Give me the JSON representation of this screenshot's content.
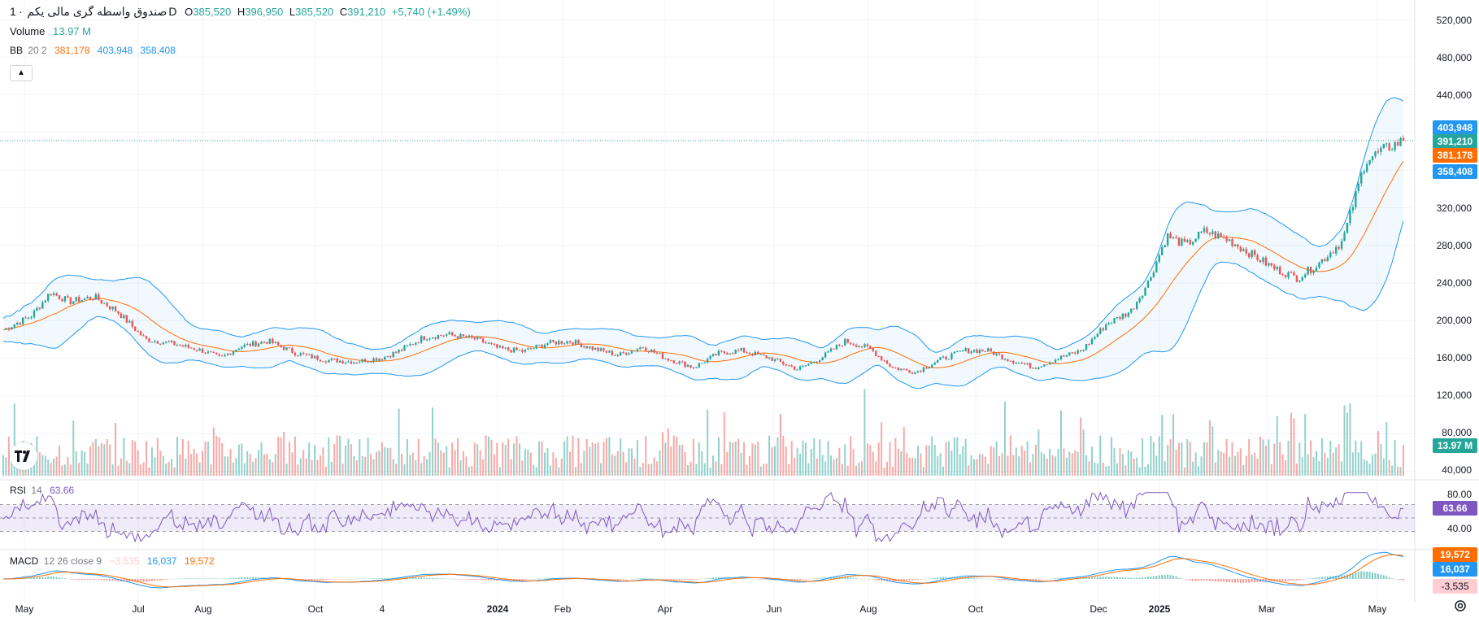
{
  "header": {
    "symbol": "صندوق واسطه گری مالی یکم",
    "sep": "·",
    "interval": "1D",
    "o_label": "O",
    "o_value": "385,520",
    "h_label": "H",
    "h_value": "396,950",
    "l_label": "L",
    "l_value": "385,520",
    "c_label": "C",
    "c_value": "391,210",
    "change": "+5,740 (+1.49%)"
  },
  "volume_legend": {
    "label": "Volume",
    "value": "13.97 M"
  },
  "bb_legend": {
    "label": "BB",
    "params": "20 2",
    "basis": "381,178",
    "upper": "403,948",
    "lower": "358,408"
  },
  "rsi_legend": {
    "label": "RSI",
    "params": "14",
    "value": "63.66"
  },
  "macd_legend": {
    "label": "MACD",
    "params": "12 26 close 9",
    "hist": "−3,535",
    "macd": "16,037",
    "signal": "19,572"
  },
  "price_axis": {
    "ticks": [
      "520,000",
      "480,000",
      "440,000",
      "320,000",
      "280,000",
      "240,000",
      "200,000",
      "160,000",
      "120,000",
      "80,000",
      "40,000"
    ],
    "tags": {
      "upper": "403,948",
      "close": "391,210",
      "basis": "381,178",
      "lower": "358,408",
      "volume": "13.97 M"
    }
  },
  "rsi_axis": {
    "ticks": [
      "80.00",
      "40.00"
    ],
    "tag": "63.66"
  },
  "macd_axis": {
    "tags": {
      "signal": "19,572",
      "macd": "16,037",
      "hist": "-3,535"
    }
  },
  "time_axis": [
    "May",
    "Jul",
    "Aug",
    "Oct",
    "4",
    "2024",
    "Feb",
    "Apr",
    "Jun",
    "Aug",
    "Oct",
    "Dec",
    "2025",
    "Mar",
    "May"
  ],
  "colors": {
    "up": "#26a69a",
    "down": "#ef5350",
    "bb_band": "#2196f3",
    "bb_basis": "#ff6d00",
    "rsi": "#7e57c2",
    "macd": "#2196f3",
    "signal": "#ff6d00",
    "close_line": "#26a69a"
  },
  "chart_data": {
    "type": "candlestick",
    "x_range": [
      "2023-05",
      "2025-05"
    ],
    "price_range": [
      120000,
      520000
    ],
    "close_path": [
      [
        0,
        190000
      ],
      [
        15,
        205000
      ],
      [
        25,
        230000
      ],
      [
        35,
        220000
      ],
      [
        48,
        225000
      ],
      [
        60,
        210000
      ],
      [
        75,
        180000
      ],
      [
        90,
        175000
      ],
      [
        105,
        168000
      ],
      [
        115,
        160000
      ],
      [
        125,
        172000
      ],
      [
        140,
        178000
      ],
      [
        155,
        165000
      ],
      [
        170,
        158000
      ],
      [
        185,
        156000
      ],
      [
        200,
        160000
      ],
      [
        210,
        168000
      ],
      [
        222,
        182000
      ],
      [
        235,
        185000
      ],
      [
        250,
        180000
      ],
      [
        262,
        170000
      ],
      [
        275,
        167000
      ],
      [
        288,
        176000
      ],
      [
        300,
        178000
      ],
      [
        312,
        170000
      ],
      [
        325,
        163000
      ],
      [
        338,
        172000
      ],
      [
        350,
        160000
      ],
      [
        365,
        150000
      ],
      [
        378,
        165000
      ],
      [
        390,
        168000
      ],
      [
        405,
        160000
      ],
      [
        420,
        148000
      ],
      [
        432,
        160000
      ],
      [
        445,
        178000
      ],
      [
        458,
        170000
      ],
      [
        470,
        150000
      ],
      [
        482,
        145000
      ],
      [
        495,
        158000
      ],
      [
        508,
        168000
      ],
      [
        520,
        168000
      ],
      [
        532,
        158000
      ],
      [
        545,
        150000
      ],
      [
        558,
        160000
      ],
      [
        570,
        168000
      ],
      [
        583,
        196000
      ],
      [
        596,
        210000
      ],
      [
        605,
        240000
      ],
      [
        615,
        290000
      ],
      [
        625,
        280000
      ],
      [
        635,
        295000
      ],
      [
        648,
        285000
      ],
      [
        660,
        270000
      ],
      [
        672,
        255000
      ],
      [
        684,
        245000
      ],
      [
        695,
        260000
      ],
      [
        708,
        285000
      ],
      [
        720,
        370000
      ],
      [
        730,
        382000
      ],
      [
        740,
        391210
      ]
    ],
    "volume_range_M": [
      0,
      140
    ],
    "last_volume_M": 13.97,
    "rsi_range": [
      0,
      100
    ],
    "rsi_bands": [
      30,
      70
    ],
    "rsi_last": 63.66,
    "macd_last": {
      "macd": 16037,
      "signal": 19572,
      "hist": -3535
    }
  }
}
